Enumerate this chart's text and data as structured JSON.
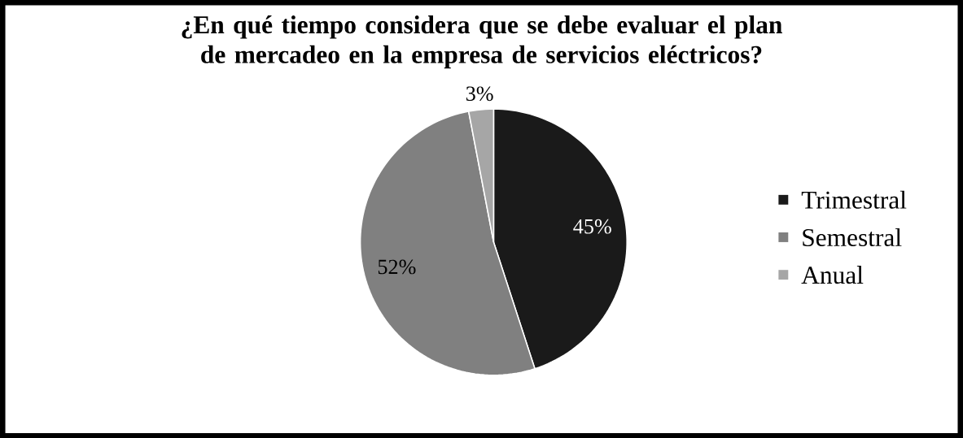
{
  "chart_data": {
    "type": "pie",
    "title": "¿En qué tiempo considera que se debe evaluar el plan de mercadeo en la empresa de servicios eléctricos?",
    "categories": [
      "Trimestral",
      "Semestral",
      "Anual"
    ],
    "values": [
      45,
      52,
      3
    ],
    "colors": [
      "#1a1a1a",
      "#808080",
      "#a6a6a6"
    ],
    "value_labels": [
      "45%",
      "52%",
      "3%"
    ],
    "legend": "right"
  }
}
